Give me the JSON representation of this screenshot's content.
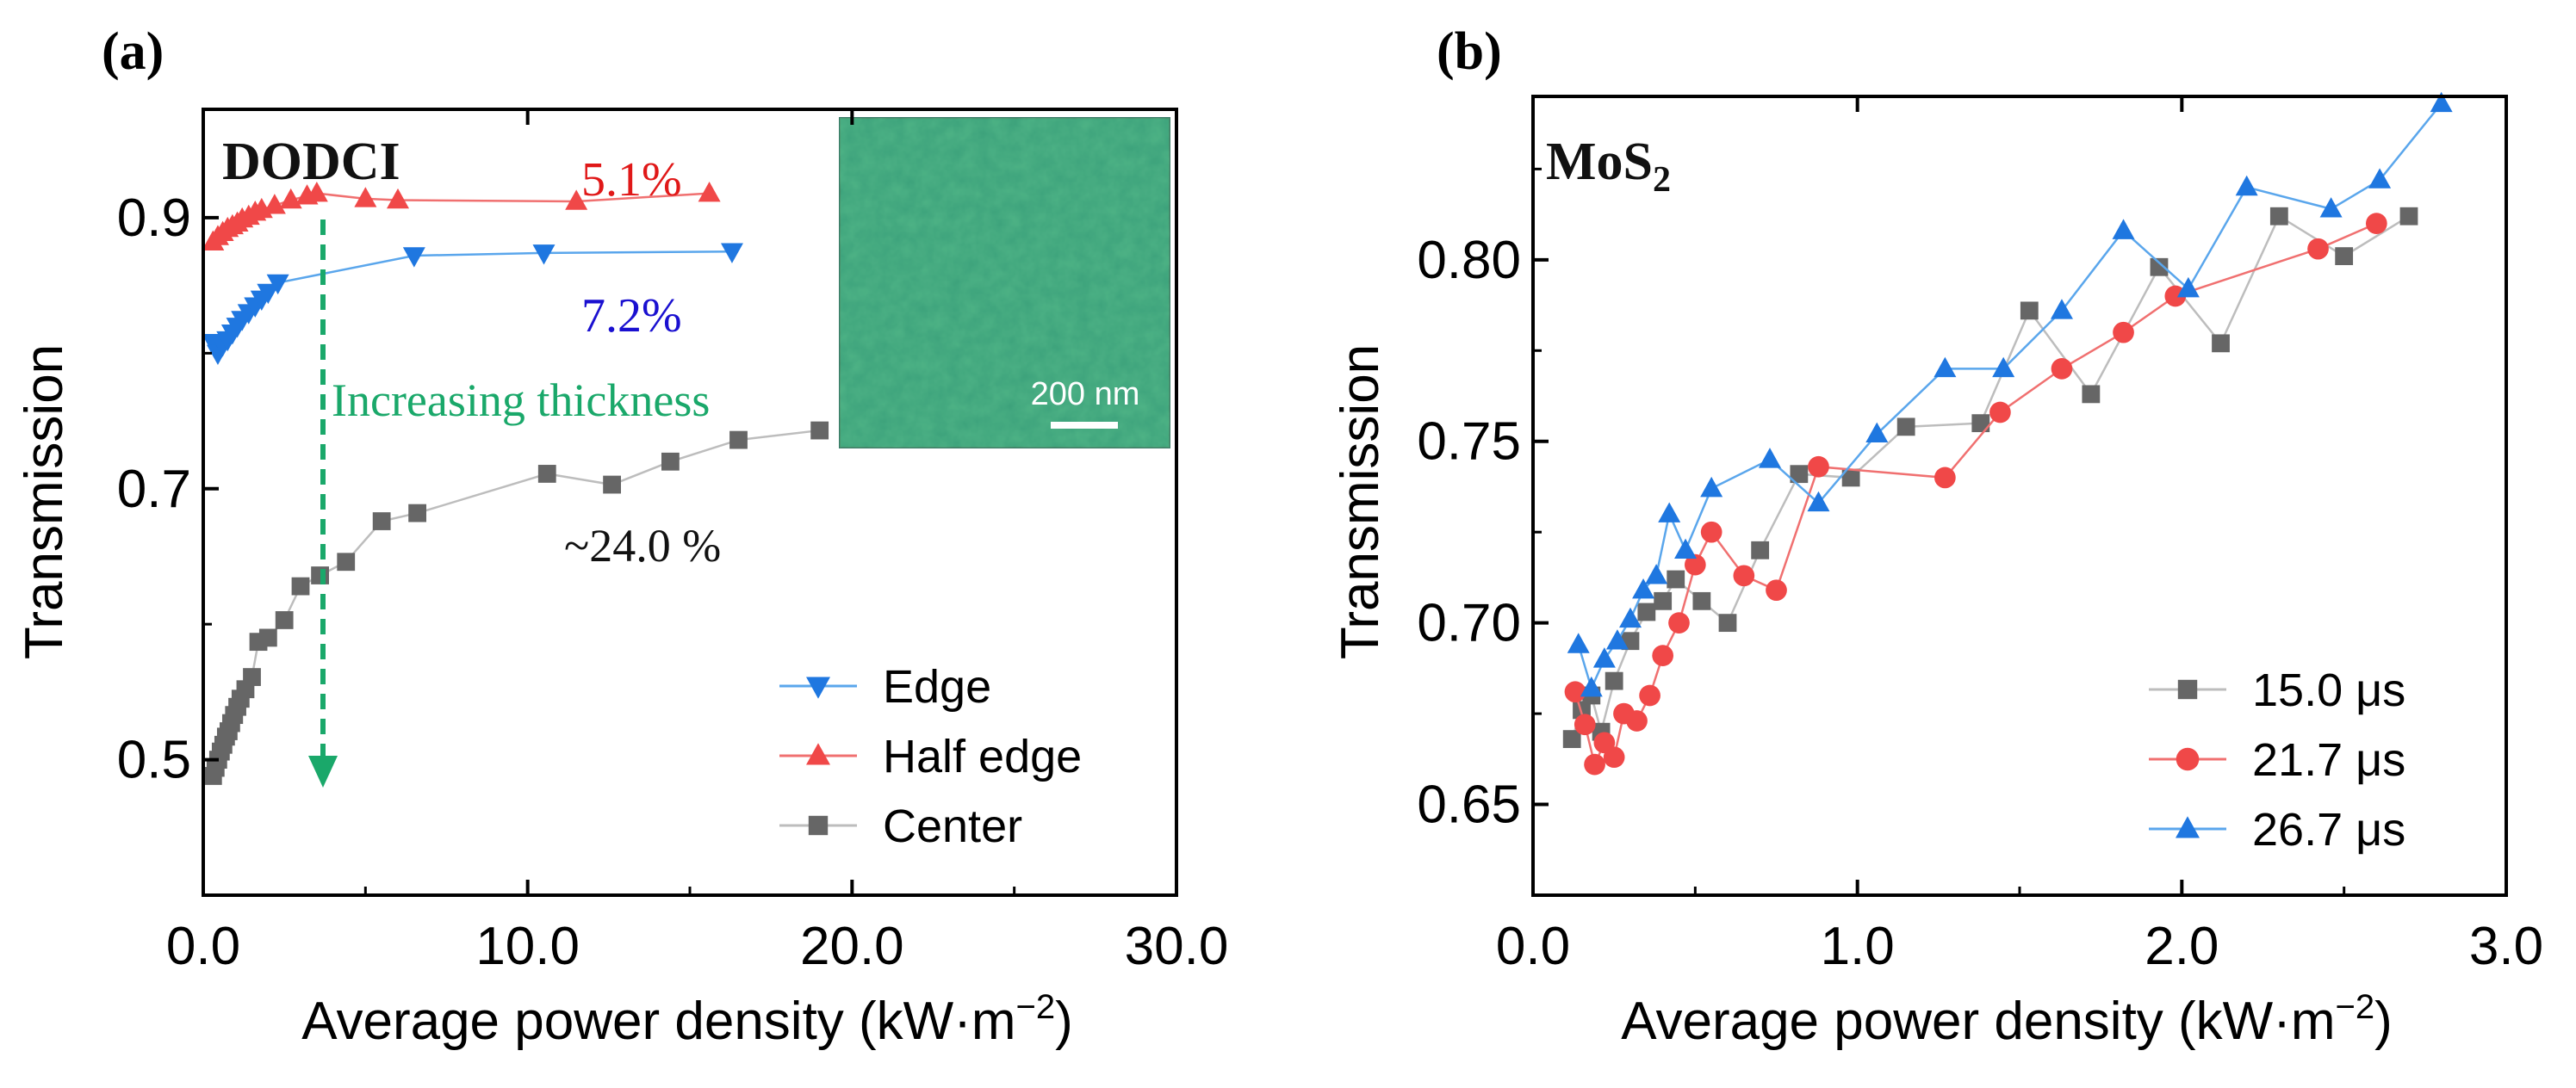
{
  "panel_a_label": "(a)",
  "panel_b_label": "(b)",
  "chart_data": [
    {
      "type": "line",
      "panel": "(a)",
      "sample_label": "DODCI",
      "xlabel": "Average power density  (kW·m",
      "xlabel_sup": "−2",
      "xlabel_close": ")",
      "ylabel": "Transmission",
      "xlim": [
        0,
        30
      ],
      "ylim": [
        0.4,
        0.98
      ],
      "xticks": [
        0,
        10,
        20,
        30
      ],
      "xtick_labels": [
        "0.0",
        "10.0",
        "20.0",
        "30.0"
      ],
      "yticks": [
        0.5,
        0.7,
        0.9
      ],
      "ytick_labels": [
        "0.5",
        "0.7",
        "0.9"
      ],
      "series": [
        {
          "name": "Edge",
          "marker": "triangle-down",
          "color": "#1f77e0",
          "line_color": "#5aa6ec",
          "x": [
            0.3,
            0.45,
            0.6,
            0.75,
            0.9,
            1.05,
            1.2,
            1.4,
            1.6,
            1.8,
            2.0,
            2.3,
            6.5,
            10.5,
            16.3
          ],
          "y": [
            0.808,
            0.8,
            0.806,
            0.81,
            0.815,
            0.82,
            0.825,
            0.83,
            0.835,
            0.84,
            0.845,
            0.852,
            0.872,
            0.874,
            0.875
          ]
        },
        {
          "name": "Half edge",
          "marker": "triangle-up",
          "color": "#f04848",
          "line_color": "#f07070",
          "x": [
            0.3,
            0.45,
            0.6,
            0.75,
            0.9,
            1.05,
            1.2,
            1.4,
            1.6,
            1.8,
            2.2,
            2.7,
            3.2,
            3.5,
            5.0,
            6.0,
            11.5,
            15.6
          ],
          "y": [
            0.882,
            0.886,
            0.889,
            0.892,
            0.894,
            0.896,
            0.899,
            0.901,
            0.904,
            0.906,
            0.909,
            0.913,
            0.916,
            0.918,
            0.914,
            0.913,
            0.912,
            0.918
          ]
        },
        {
          "name": "Center",
          "marker": "square",
          "color": "#666666",
          "line_color": "#bdbdbd",
          "x": [
            0.3,
            0.38,
            0.46,
            0.54,
            0.62,
            0.7,
            0.78,
            0.86,
            0.95,
            1.05,
            1.15,
            1.3,
            1.5,
            1.7,
            2.0,
            2.5,
            3.0,
            3.6,
            4.4,
            5.5,
            6.6,
            10.6,
            12.6,
            14.4,
            16.5,
            19.0
          ],
          "y": [
            0.488,
            0.494,
            0.5,
            0.506,
            0.511,
            0.517,
            0.521,
            0.527,
            0.533,
            0.539,
            0.545,
            0.552,
            0.561,
            0.587,
            0.59,
            0.603,
            0.628,
            0.636,
            0.646,
            0.676,
            0.682,
            0.711,
            0.703,
            0.72,
            0.736,
            0.743
          ]
        }
      ],
      "annotations": [
        {
          "text": "5.1%",
          "color": "#e01818"
        },
        {
          "text": "7.2%",
          "color": "#1a10d0"
        },
        {
          "text": "~24.0 %",
          "color": "#111111"
        },
        {
          "text": "Increasing  thickness",
          "color": "#1aa86a"
        }
      ],
      "inset": {
        "scale_label": "200 nm"
      }
    },
    {
      "type": "line",
      "panel": "(b)",
      "sample_label": "MoS",
      "sample_label_sub": "2",
      "xlabel": "Average power density (kW·m",
      "xlabel_sup": "−2",
      "xlabel_close": ")",
      "ylabel": "Transmission",
      "xlim": [
        0,
        3
      ],
      "ylim": [
        0.625,
        0.845
      ],
      "xticks": [
        0,
        1,
        2,
        3
      ],
      "xtick_labels": [
        "0.0",
        "1.0",
        "2.0",
        "3.0"
      ],
      "yticks": [
        0.65,
        0.7,
        0.75,
        0.8
      ],
      "ytick_labels": [
        "0.65",
        "0.70",
        "0.75",
        "0.80"
      ],
      "series": [
        {
          "name": "15.0 μs",
          "marker": "square",
          "color": "#666666",
          "line_color": "#bdbdbd",
          "x": [
            0.12,
            0.15,
            0.18,
            0.21,
            0.25,
            0.3,
            0.35,
            0.4,
            0.44,
            0.52,
            0.6,
            0.7,
            0.82,
            0.98,
            1.15,
            1.38,
            1.53,
            1.72,
            1.93,
            2.12,
            2.3,
            2.5,
            2.7
          ],
          "y": [
            0.668,
            0.676,
            0.68,
            0.67,
            0.684,
            0.695,
            0.703,
            0.706,
            0.712,
            0.706,
            0.7,
            0.72,
            0.741,
            0.74,
            0.754,
            0.755,
            0.786,
            0.763,
            0.798,
            0.777,
            0.812,
            0.801,
            0.812
          ]
        },
        {
          "name": "21.7 μs",
          "marker": "circle",
          "color": "#f04848",
          "line_color": "#f07070",
          "x": [
            0.13,
            0.16,
            0.19,
            0.22,
            0.25,
            0.28,
            0.32,
            0.36,
            0.4,
            0.45,
            0.5,
            0.55,
            0.65,
            0.75,
            0.88,
            1.27,
            1.44,
            1.63,
            1.82,
            1.98,
            2.42,
            2.6
          ],
          "y": [
            0.681,
            0.672,
            0.661,
            0.667,
            0.663,
            0.675,
            0.673,
            0.68,
            0.691,
            0.7,
            0.716,
            0.725,
            0.713,
            0.709,
            0.743,
            0.74,
            0.758,
            0.77,
            0.78,
            0.79,
            0.803,
            0.81
          ],
          "order": "connected"
        },
        {
          "name": "26.7 μs",
          "marker": "triangle-up",
          "color": "#1f77e0",
          "line_color": "#5aa6ec",
          "x": [
            0.14,
            0.18,
            0.22,
            0.26,
            0.3,
            0.34,
            0.38,
            0.42,
            0.47,
            0.55,
            0.73,
            0.88,
            1.06,
            1.27,
            1.45,
            1.63,
            1.82,
            2.02,
            2.2,
            2.46,
            2.61,
            2.8
          ],
          "y": [
            0.694,
            0.682,
            0.69,
            0.695,
            0.701,
            0.709,
            0.713,
            0.73,
            0.72,
            0.737,
            0.745,
            0.733,
            0.752,
            0.77,
            0.77,
            0.786,
            0.808,
            0.792,
            0.82,
            0.814,
            0.822,
            0.843
          ]
        }
      ]
    }
  ]
}
